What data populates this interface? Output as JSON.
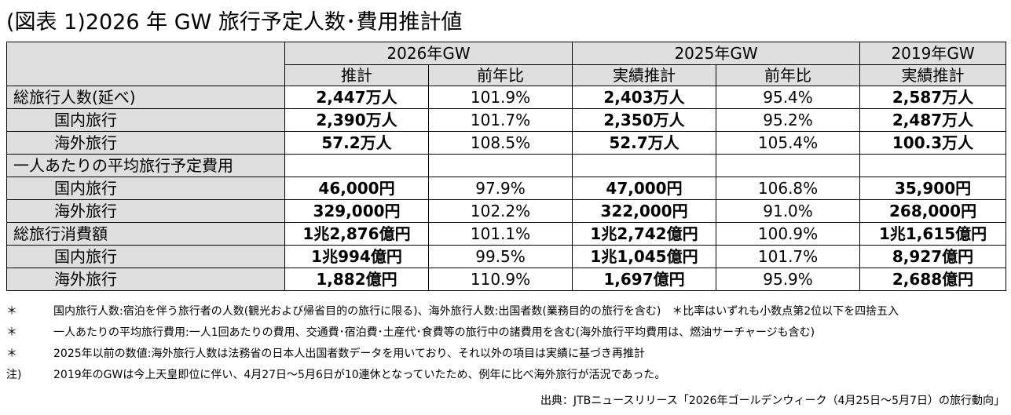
{
  "title": "(図表 1)2026 年 GW 旅行予定人数･費用推計値",
  "headers": {
    "group_2026": "2026年GW",
    "group_2025": "2025年GW",
    "group_2019": "2019年GW",
    "sub_2026_est": "推計",
    "sub_2026_yoy": "前年比",
    "sub_2025_est": "実績推計",
    "sub_2025_yoy": "前年比",
    "sub_2019_est": "実績推計"
  },
  "rows": [
    {
      "label": "総旅行人数(延べ)",
      "indent": false,
      "v2026": "2,447万人",
      "y2026": "101.9%",
      "v2025": "2,403万人",
      "y2025": "95.4%",
      "v2019": "2,587万人"
    },
    {
      "label": "国内旅行",
      "indent": true,
      "v2026": "2,390万人",
      "y2026": "101.7%",
      "v2025": "2,350万人",
      "y2025": "95.2%",
      "v2019": "2,487万人"
    },
    {
      "label": "海外旅行",
      "indent": true,
      "v2026": "57.2万人",
      "y2026": "108.5%",
      "v2025": "52.7万人",
      "y2025": "105.4%",
      "v2019": "100.3万人"
    },
    {
      "label": "一人あたりの平均旅行予定費用",
      "indent": false,
      "v2026": "",
      "y2026": "",
      "v2025": "",
      "y2025": "",
      "v2019": ""
    },
    {
      "label": "国内旅行",
      "indent": true,
      "v2026": "46,000円",
      "y2026": "97.9%",
      "v2025": "47,000円",
      "y2025": "106.8%",
      "v2019": "35,900円"
    },
    {
      "label": "海外旅行",
      "indent": true,
      "v2026": "329,000円",
      "y2026": "102.2%",
      "v2025": "322,000円",
      "y2025": "91.0%",
      "v2019": "268,000円"
    },
    {
      "label": "総旅行消費額",
      "indent": false,
      "v2026": "1兆2,876億円",
      "y2026": "101.1%",
      "v2025": "1兆2,742億円",
      "y2025": "100.9%",
      "v2019": "1兆1,615億円"
    },
    {
      "label": "国内旅行",
      "indent": true,
      "v2026": "1兆994億円",
      "y2026": "99.5%",
      "v2025": "1兆1,045億円",
      "y2025": "101.7%",
      "v2019": "8,927億円"
    },
    {
      "label": "海外旅行",
      "indent": true,
      "v2026": "1,882億円",
      "y2026": "110.9%",
      "v2025": "1,697億円",
      "y2025": "95.9%",
      "v2019": "2,688億円"
    }
  ],
  "notes": [
    {
      "mark": "＊",
      "text": "国内旅行人数:宿泊を伴う旅行者の人数(観光および帰省目的の旅行に限る)、海外旅行人数:出国者数(業務目的の旅行を含む)　＊比率はいずれも小数点第2位以下を四捨五入"
    },
    {
      "mark": "＊",
      "text": "一人あたりの平均旅行費用:一人1回あたりの費用、交通費･宿泊費･土産代･食費等の旅行中の諸費用を含む(海外旅行平均費用は、燃油サーチャージも含む)"
    },
    {
      "mark": "＊",
      "text": "2025年以前の数値:海外旅行人数は法務省の日本人出国者数データを用いており、それ以外の項目は実績に基づき再推計"
    },
    {
      "mark": "注)",
      "text": "2019年のGWは今上天皇即位に伴い、4月27日～5月6日が10連休となっていたため、例年に比べ海外旅行が活況であった。"
    }
  ],
  "source": "出典：JTBニュースリリース「2026年ゴールデンウィーク（4月25日～5月7日）の旅行動向」"
}
